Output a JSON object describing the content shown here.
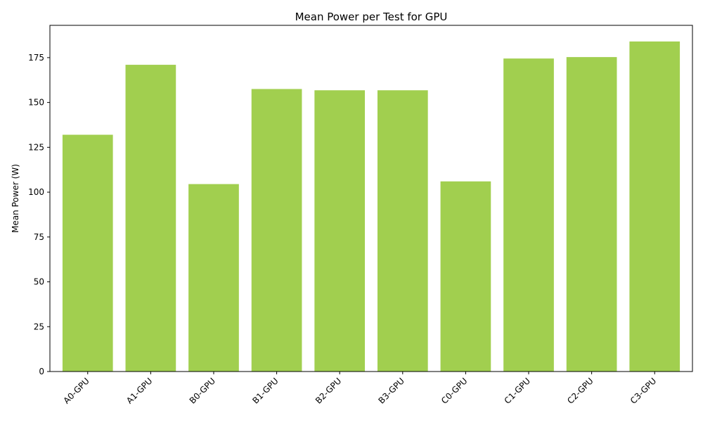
{
  "chart_data": {
    "type": "bar",
    "title": "Mean Power per Test for GPU",
    "xlabel": "",
    "ylabel": "Mean Power (W)",
    "categories": [
      "A0-GPU",
      "A1-GPU",
      "B0-GPU",
      "B1-GPU",
      "B2-GPU",
      "B3-GPU",
      "C0-GPU",
      "C1-GPU",
      "C2-GPU",
      "C3-GPU"
    ],
    "values": [
      132,
      171,
      104.5,
      157.5,
      156.8,
      156.8,
      106,
      174.5,
      175.3,
      184
    ],
    "ylim": [
      0,
      193
    ],
    "yticks": [
      0,
      25,
      50,
      75,
      100,
      125,
      150,
      175
    ],
    "grid": false,
    "legend": "none",
    "bar_color": "#a1cf4f"
  }
}
